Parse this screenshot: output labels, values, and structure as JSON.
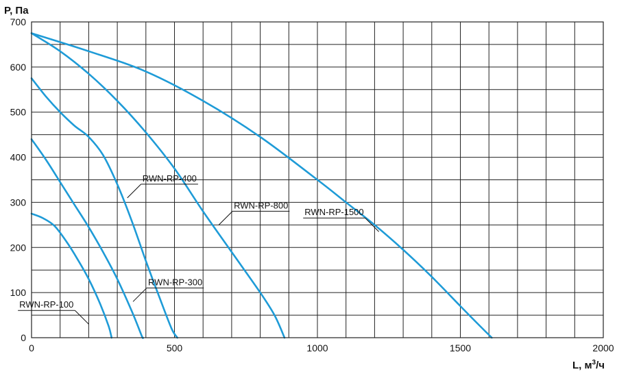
{
  "chart_data": {
    "type": "line",
    "title": "",
    "xlabel": "L, м",
    "xlabel_sup": "3",
    "xlabel_tail": "/ч",
    "ylabel": "P, Па",
    "xlim": [
      0,
      2000
    ],
    "ylim": [
      0,
      700
    ],
    "x_ticks": [
      0,
      500,
      1000,
      1500,
      2000
    ],
    "y_ticks": [
      0,
      100,
      200,
      300,
      400,
      500,
      600,
      700
    ],
    "x_grid_step": 100,
    "y_grid_step": 50,
    "grid": true,
    "curve_color": "#1e9bd7",
    "series": [
      {
        "name": "RWN-RP-100",
        "label_anchor": [
          200,
          30
        ],
        "label_side": "left",
        "points": [
          [
            0,
            275
          ],
          [
            40,
            265
          ],
          [
            80,
            248
          ],
          [
            120,
            215
          ],
          [
            160,
            175
          ],
          [
            200,
            130
          ],
          [
            240,
            75
          ],
          [
            270,
            25
          ],
          [
            280,
            0
          ]
        ]
      },
      {
        "name": "RWN-RP-300",
        "label_anchor": [
          355,
          80
        ],
        "label_side": "right",
        "points": [
          [
            0,
            440
          ],
          [
            50,
            395
          ],
          [
            100,
            345
          ],
          [
            150,
            295
          ],
          [
            200,
            245
          ],
          [
            250,
            190
          ],
          [
            300,
            130
          ],
          [
            350,
            60
          ],
          [
            385,
            5
          ],
          [
            390,
            0
          ]
        ]
      },
      {
        "name": "RWN-RP-400",
        "label_anchor": [
          335,
          310
        ],
        "label_side": "right",
        "points": [
          [
            0,
            575
          ],
          [
            50,
            535
          ],
          [
            100,
            500
          ],
          [
            150,
            470
          ],
          [
            200,
            445
          ],
          [
            250,
            405
          ],
          [
            300,
            340
          ],
          [
            350,
            260
          ],
          [
            400,
            170
          ],
          [
            450,
            85
          ],
          [
            490,
            20
          ],
          [
            510,
            0
          ]
        ]
      },
      {
        "name": "RWN-RP-800",
        "label_anchor": [
          655,
          250
        ],
        "label_side": "right",
        "points": [
          [
            0,
            675
          ],
          [
            100,
            635
          ],
          [
            200,
            585
          ],
          [
            300,
            525
          ],
          [
            400,
            455
          ],
          [
            500,
            375
          ],
          [
            600,
            280
          ],
          [
            700,
            190
          ],
          [
            800,
            100
          ],
          [
            850,
            50
          ],
          [
            885,
            0
          ]
        ]
      },
      {
        "name": "RWN-RP-1500",
        "label_anchor": [
          1215,
          235
        ],
        "label_side": "left",
        "points": [
          [
            0,
            675
          ],
          [
            200,
            635
          ],
          [
            400,
            590
          ],
          [
            600,
            525
          ],
          [
            800,
            445
          ],
          [
            1000,
            350
          ],
          [
            1100,
            300
          ],
          [
            1200,
            250
          ],
          [
            1300,
            195
          ],
          [
            1400,
            135
          ],
          [
            1500,
            70
          ],
          [
            1570,
            25
          ],
          [
            1610,
            0
          ]
        ]
      }
    ]
  }
}
